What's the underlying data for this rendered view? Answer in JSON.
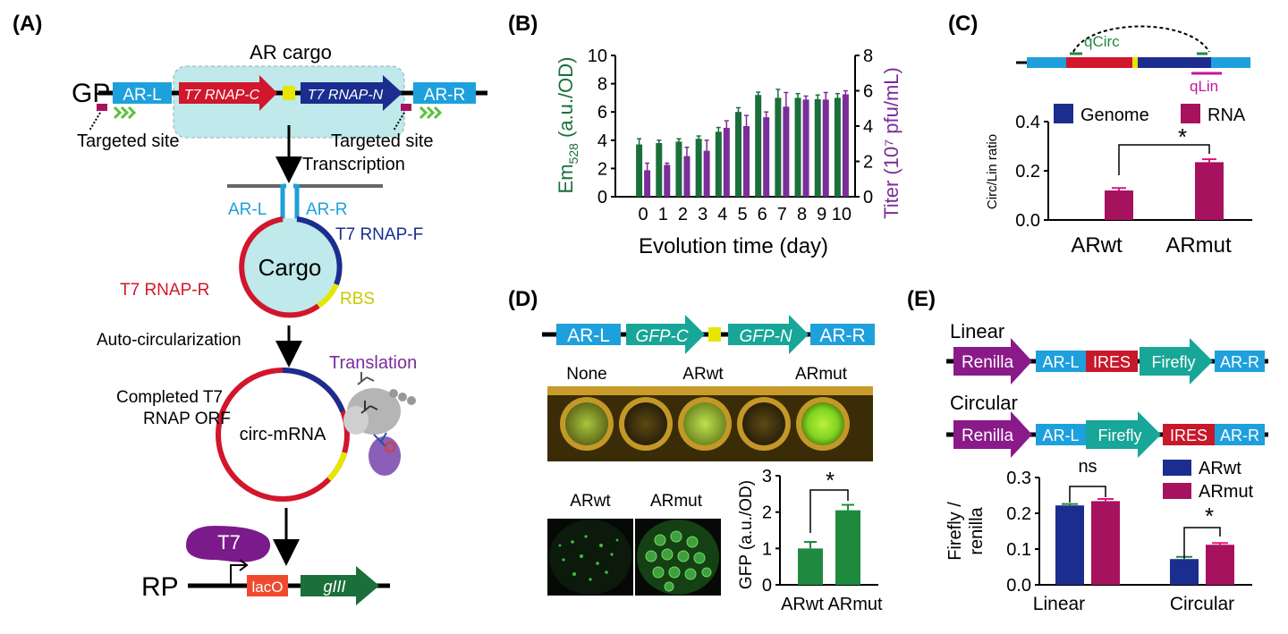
{
  "colors": {
    "blue": "#1ea0dc",
    "navy": "#1b2d8f",
    "red": "#d2162c",
    "yellow": "#e6e600",
    "green": "#1f8a3f",
    "teal": "#17a697",
    "purple": "#7b2d99",
    "magenta": "#a6125e",
    "darkgreen": "#1a6f3a",
    "cyanbox": "#bfe9ea",
    "lacO": "#f04a2e"
  },
  "panelA": {
    "label": "(A)",
    "ar_cargo": "AR cargo",
    "gp": "GP",
    "ar_l": "AR-L",
    "ar_r": "AR-R",
    "t7_c": "T7 RNAP-C",
    "t7_n": "T7 RNAP-N",
    "targeted_left": "Targeted site",
    "targeted_right": "Targeted site",
    "transcription": "Transcription",
    "cargo": "Cargo",
    "t7_f": "T7 RNAP-F",
    "t7_r": "T7 RNAP-R",
    "rbs": "RBS",
    "autocirc": "Auto-circularization",
    "translation": "Translation",
    "completed1": "Completed T7",
    "completed2": "RNAP ORF",
    "circ": "circ-mRNA",
    "t7": "T7",
    "rp": "RP",
    "laco": "lacO",
    "giii": "gIII"
  },
  "panelB": {
    "label": "(B)",
    "ylabel_left_main": "Em",
    "ylabel_left_sub": "528",
    "ylabel_left_unit": " (a.u./OD)",
    "ylabel_right": "Titer (10⁷ pfu/mL)",
    "xlabel": "Evolution time (day)"
  },
  "chart_data": [
    {
      "panel": "B",
      "type": "bar",
      "categories": [
        "0",
        "1",
        "2",
        "3",
        "4",
        "5",
        "6",
        "7",
        "8",
        "9",
        "10"
      ],
      "series": [
        {
          "axis": "left",
          "values": [
            3.7,
            3.8,
            3.9,
            4.1,
            4.6,
            6.0,
            7.2,
            7.0,
            7.0,
            6.9,
            7.0
          ],
          "errors": [
            0.4,
            0.2,
            0.2,
            0.2,
            0.3,
            0.3,
            0.2,
            0.6,
            0.3,
            0.3,
            0.3
          ],
          "color": "#1a6f3a"
        },
        {
          "axis": "right",
          "values": [
            1.5,
            1.8,
            2.3,
            2.6,
            3.9,
            4.0,
            4.5,
            5.1,
            5.5,
            5.5,
            5.8
          ],
          "errors": [
            0.4,
            0.1,
            0.5,
            0.6,
            0.4,
            0.6,
            0.3,
            0.8,
            0.2,
            0.4,
            0.2
          ],
          "color": "#7b2d99"
        }
      ],
      "ylim_left": [
        0,
        10
      ],
      "yticks_left": [
        0,
        2,
        4,
        6,
        8,
        10
      ],
      "ylim_right": [
        0,
        8
      ],
      "yticks_right": [
        0,
        2,
        4,
        6,
        8
      ]
    },
    {
      "panel": "C",
      "type": "bar",
      "categories": [
        "ARwt",
        "ARmut"
      ],
      "values": [
        0.12,
        0.235
      ],
      "errors": [
        0.01,
        0.012
      ],
      "legend": [
        "Genome",
        "RNA"
      ],
      "ylabel": "Circ/Lin ratio",
      "ylim": [
        0,
        0.4
      ],
      "yticks": [
        "0.0",
        "0.2",
        "0.4"
      ],
      "significance": "*"
    },
    {
      "panel": "D",
      "type": "bar",
      "categories": [
        "ARwt",
        "ARmut"
      ],
      "values": [
        1.0,
        2.05
      ],
      "errors": [
        0.18,
        0.15
      ],
      "ylabel": "GFP (a.u./OD)",
      "ylim": [
        0,
        3
      ],
      "yticks": [
        "0",
        "1",
        "2",
        "3"
      ],
      "significance": "*"
    },
    {
      "panel": "E",
      "type": "bar",
      "categories": [
        "Linear",
        "Circular"
      ],
      "series": [
        {
          "name": "ARwt",
          "values": [
            0.222,
            0.072
          ],
          "errors": [
            0.004,
            0.006
          ]
        },
        {
          "name": "ARmut",
          "values": [
            0.234,
            0.112
          ],
          "errors": [
            0.006,
            0.005
          ]
        }
      ],
      "ylabel_line1": "Firefly /",
      "ylabel_line2": "renilla",
      "ylim": [
        0,
        0.3
      ],
      "yticks": [
        "0.0",
        "0.1",
        "0.2",
        "0.3"
      ],
      "significance": [
        "ns",
        "*"
      ]
    }
  ],
  "panelC": {
    "label": "(C)",
    "qcirc": "qCirc",
    "qlin": "qLin",
    "legend_genome": "Genome",
    "legend_rna": "RNA",
    "ylabel": "Circ/Lin ratio",
    "star": "*",
    "x1": "ARwt",
    "x2": "ARmut"
  },
  "panelD": {
    "label": "(D)",
    "ar_l": "AR-L",
    "ar_r": "AR-R",
    "gfp_c": "GFP-C",
    "gfp_n": "GFP-N",
    "none": "None",
    "arwt": "ARwt",
    "armut": "ARmut",
    "img_arwt": "ARwt",
    "img_armut": "ARmut",
    "ylabel": "GFP (a.u./OD)",
    "star": "*",
    "x1": "ARwt",
    "x2": "ARmut"
  },
  "panelE": {
    "label": "(E)",
    "linear": "Linear",
    "circular": "Circular",
    "renilla": "Renilla",
    "ar_l": "AR-L",
    "ires": "IRES",
    "firefly": "Firefly",
    "ar_r": "AR-R",
    "ylabel1": "Firefly /",
    "ylabel2": "renilla",
    "legend_arwt": "ARwt",
    "legend_armut": "ARmut",
    "ns": "ns",
    "star": "*",
    "x1": "Linear",
    "x2": "Circular"
  }
}
